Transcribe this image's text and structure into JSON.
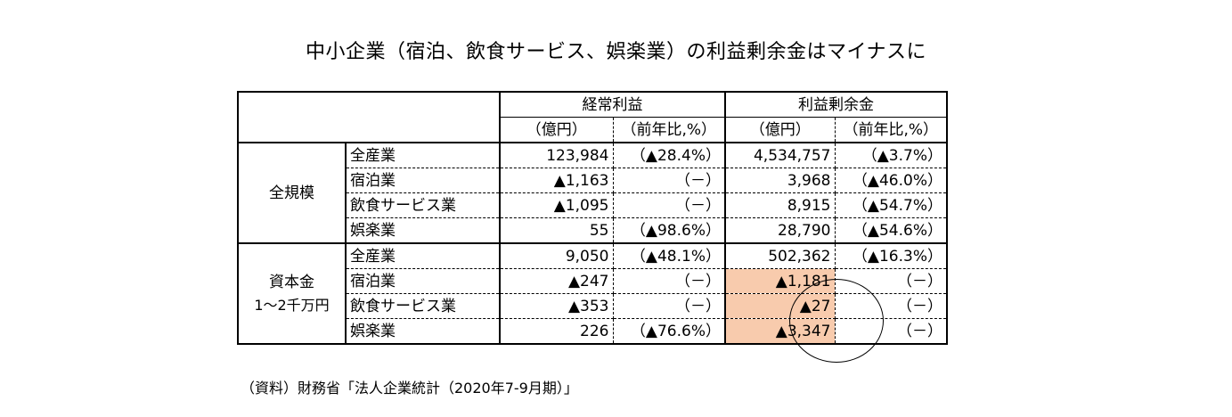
{
  "title": "中小企業（宿泊、飲食サービス、娯楽業）の利益剰余金はマイナスに",
  "header": {
    "group1": "経常利益",
    "group2": "利益剰余金",
    "unit_yen": "（億円）",
    "unit_pct": "（前年比,%）"
  },
  "sections": [
    {
      "label": "全規模",
      "label2": "",
      "rows": [
        {
          "industry": "全産業",
          "op_profit": "123,984",
          "op_yoy": "（▲28.4%）",
          "retained": "4,534,757",
          "ret_yoy": "（▲3.7%）",
          "highlight": false
        },
        {
          "industry": "宿泊業",
          "op_profit": "▲1,163",
          "op_yoy": "（－）",
          "retained": "3,968",
          "ret_yoy": "（▲46.0%）",
          "highlight": false
        },
        {
          "industry": "飲食サービス業",
          "op_profit": "▲1,095",
          "op_yoy": "（－）",
          "retained": "8,915",
          "ret_yoy": "（▲54.7%）",
          "highlight": false
        },
        {
          "industry": "娯楽業",
          "op_profit": "55",
          "op_yoy": "（▲98.6%）",
          "retained": "28,790",
          "ret_yoy": "（▲54.6%）",
          "highlight": false
        }
      ]
    },
    {
      "label": "資本金",
      "label2": "1～2千万円",
      "rows": [
        {
          "industry": "全産業",
          "op_profit": "9,050",
          "op_yoy": "（▲48.1%）",
          "retained": "502,362",
          "ret_yoy": "（▲16.3%）",
          "highlight": false
        },
        {
          "industry": "宿泊業",
          "op_profit": "▲247",
          "op_yoy": "（－）",
          "retained": "▲1,181",
          "ret_yoy": "（－）",
          "highlight": true
        },
        {
          "industry": "飲食サービス業",
          "op_profit": "▲353",
          "op_yoy": "（－）",
          "retained": "▲27",
          "ret_yoy": "（－）",
          "highlight": true
        },
        {
          "industry": "娯楽業",
          "op_profit": "226",
          "op_yoy": "（▲76.6%）",
          "retained": "▲3,347",
          "ret_yoy": "（－）",
          "highlight": true
        }
      ]
    }
  ],
  "colors": {
    "highlight": "#f8cbad",
    "border": "#000000"
  },
  "footer": "（資料）財務省「法人企業統計（2020年7-9月期）」"
}
